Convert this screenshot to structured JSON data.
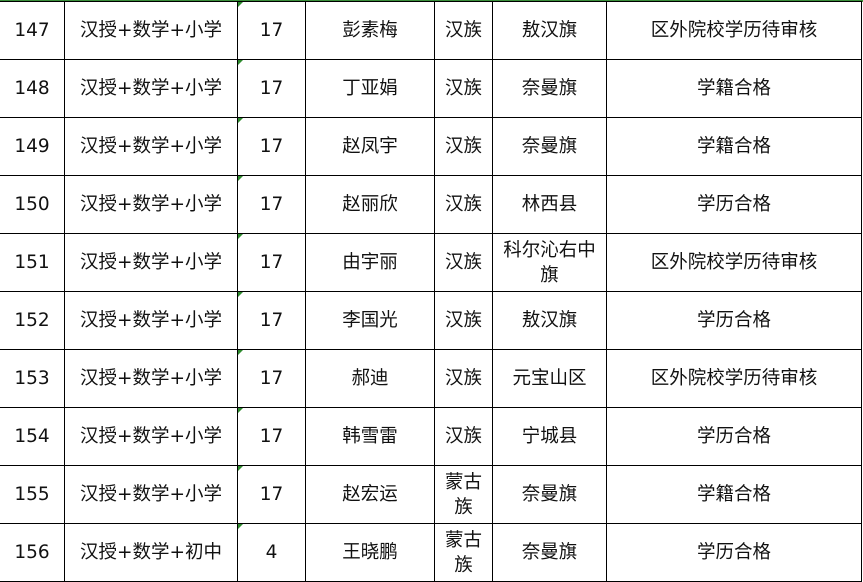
{
  "rows": [
    {
      "no": "147",
      "category": "汉授+数学+小学",
      "code": "17",
      "name": "彭素梅",
      "ethnicity": "汉族",
      "region": "敖汉旗",
      "status": "区外院校学历待审核"
    },
    {
      "no": "148",
      "category": "汉授+数学+小学",
      "code": "17",
      "name": "丁亚娟",
      "ethnicity": "汉族",
      "region": "奈曼旗",
      "status": "学籍合格"
    },
    {
      "no": "149",
      "category": "汉授+数学+小学",
      "code": "17",
      "name": "赵凤宇",
      "ethnicity": "汉族",
      "region": "奈曼旗",
      "status": "学籍合格"
    },
    {
      "no": "150",
      "category": "汉授+数学+小学",
      "code": "17",
      "name": "赵丽欣",
      "ethnicity": "汉族",
      "region": "林西县",
      "status": "学历合格"
    },
    {
      "no": "151",
      "category": "汉授+数学+小学",
      "code": "17",
      "name": "由宇丽",
      "ethnicity": "汉族",
      "region": "科尔沁右中旗",
      "status": "区外院校学历待审核"
    },
    {
      "no": "152",
      "category": "汉授+数学+小学",
      "code": "17",
      "name": "李国光",
      "ethnicity": "汉族",
      "region": "敖汉旗",
      "status": "学历合格"
    },
    {
      "no": "153",
      "category": "汉授+数学+小学",
      "code": "17",
      "name": "郝迪",
      "ethnicity": "汉族",
      "region": "元宝山区",
      "status": "区外院校学历待审核"
    },
    {
      "no": "154",
      "category": "汉授+数学+小学",
      "code": "17",
      "name": "韩雪雷",
      "ethnicity": "汉族",
      "region": "宁城县",
      "status": "学历合格"
    },
    {
      "no": "155",
      "category": "汉授+数学+小学",
      "code": "17",
      "name": "赵宏运",
      "ethnicity": "蒙古族",
      "region": "奈曼旗",
      "status": "学籍合格"
    },
    {
      "no": "156",
      "category": "汉授+数学+初中",
      "code": "4",
      "name": "王晓鹏",
      "ethnicity": "蒙古族",
      "region": "奈曼旗",
      "status": "学历合格"
    }
  ]
}
